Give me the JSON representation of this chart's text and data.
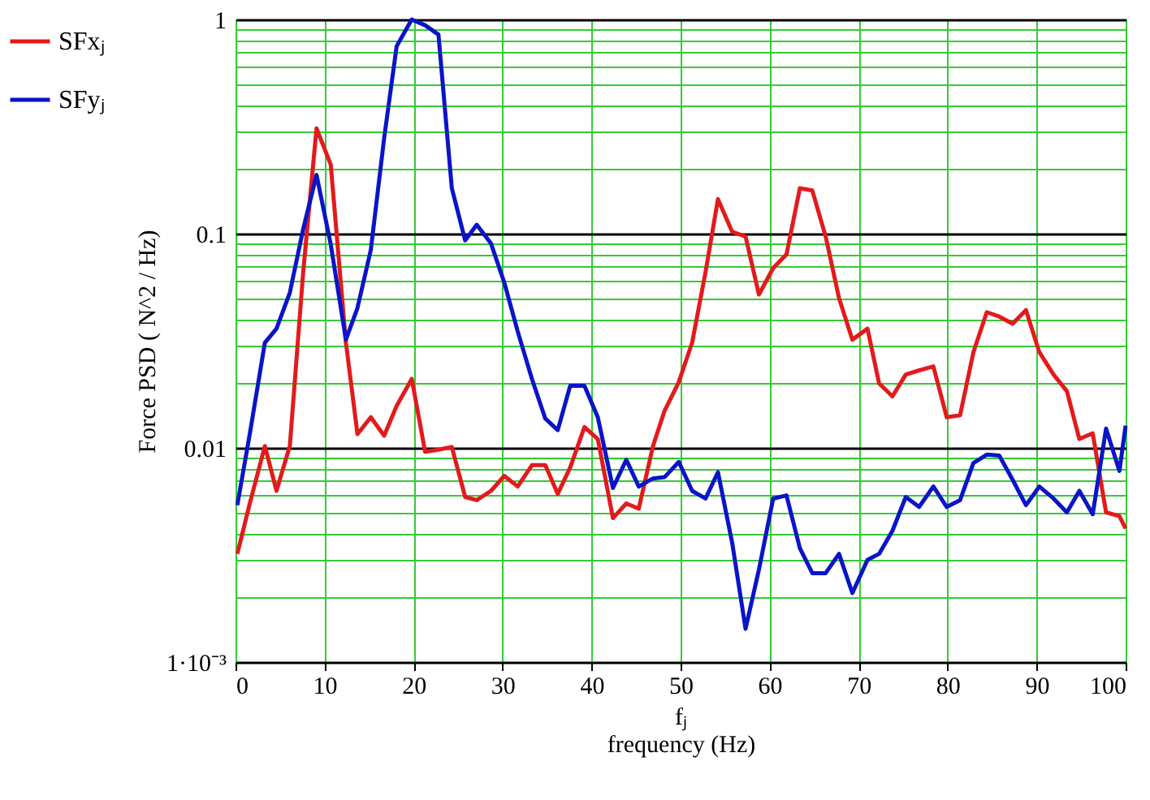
{
  "chart_data": {
    "type": "line",
    "xlabel": "fⱼ\nfrequency (Hz)",
    "ylabel": "Force PSD ( N^2 / Hz)",
    "log": "y",
    "grid": true,
    "legend": "left",
    "line_style": "solid",
    "marker": "none",
    "xlim": [
      0,
      100
    ],
    "xticks": [
      0,
      10,
      20,
      30,
      40,
      50,
      60,
      70,
      80,
      90,
      100
    ],
    "ylim": [
      0.001,
      1
    ],
    "yticks": [
      {
        "value": 0.001,
        "label": "1·10⁻³"
      },
      {
        "value": 0.002,
        "label": null
      },
      {
        "value": 0.003,
        "label": null
      },
      {
        "value": 0.004,
        "label": null
      },
      {
        "value": 0.005,
        "label": null
      },
      {
        "value": 0.006,
        "label": null
      },
      {
        "value": 0.007,
        "label": null
      },
      {
        "value": 0.008,
        "label": null
      },
      {
        "value": 0.009,
        "label": null
      },
      0.01,
      {
        "value": 0.02,
        "label": null
      },
      {
        "value": 0.03,
        "label": null
      },
      {
        "value": 0.04,
        "label": null
      },
      {
        "value": 0.05,
        "label": null
      },
      {
        "value": 0.06,
        "label": null
      },
      {
        "value": 0.07,
        "label": null
      },
      {
        "value": 0.08,
        "label": null
      },
      {
        "value": 0.09,
        "label": null
      },
      0.1,
      {
        "value": 0.2,
        "label": null
      },
      {
        "value": 0.3,
        "label": null
      },
      {
        "value": 0.4,
        "label": null
      },
      {
        "value": 0.5,
        "label": null
      },
      {
        "value": 0.6,
        "label": null
      },
      {
        "value": 0.7,
        "label": null
      },
      {
        "value": 0.8,
        "label": null
      },
      {
        "value": 0.9,
        "label": null
      },
      1
    ],
    "x": [
      0.2,
      1.6,
      3.3,
      4.6,
      6.1,
      7.6,
      9.1,
      10.7,
      12.4,
      13.7,
      15.2,
      16.7,
      18.1,
      19.8,
      21.3,
      22.8,
      24.3,
      25.8,
      27.1,
      28.7,
      30.2,
      31.7,
      33.3,
      34.8,
      36.2,
      37.6,
      39.2,
      40.7,
      42.4,
      43.9,
      45.3,
      46.9,
      48.2,
      49.8,
      51.3,
      52.8,
      54.2,
      55.8,
      57.3,
      58.8,
      60.4,
      61.9,
      63.4,
      64.8,
      66.3,
      67.8,
      69.3,
      71.0,
      72.3,
      73.8,
      75.3,
      76.8,
      78.4,
      79.9,
      81.4,
      82.9,
      84.4,
      85.8,
      87.3,
      88.8,
      90.3,
      91.9,
      93.4,
      94.8,
      96.3,
      97.8,
      99.3,
      100
    ],
    "series": [
      {
        "name": "SFxⱼ",
        "color": "#e31a1c",
        "values": [
          0.0032,
          0.0055,
          0.0102,
          0.0063,
          0.0102,
          0.066,
          0.31,
          0.21,
          0.031,
          0.0116,
          0.0139,
          0.0114,
          0.0157,
          0.021,
          0.0096,
          0.0098,
          0.0101,
          0.0059,
          0.0057,
          0.0063,
          0.0074,
          0.0066,
          0.0083,
          0.0083,
          0.0061,
          0.0081,
          0.0125,
          0.011,
          0.0047,
          0.0055,
          0.0052,
          0.0102,
          0.0149,
          0.0203,
          0.031,
          0.066,
          0.145,
          0.102,
          0.097,
          0.052,
          0.069,
          0.08,
          0.163,
          0.159,
          0.097,
          0.05,
          0.032,
          0.036,
          0.02,
          0.0174,
          0.022,
          0.023,
          0.024,
          0.0139,
          0.0142,
          0.028,
          0.043,
          0.041,
          0.038,
          0.044,
          0.028,
          0.022,
          0.0184,
          0.011,
          0.0117,
          0.005,
          0.0048,
          0.0042
        ]
      },
      {
        "name": "SFyⱼ",
        "color": "#0a14c8",
        "values": [
          0.0054,
          0.0116,
          0.031,
          0.036,
          0.053,
          0.105,
          0.188,
          0.089,
          0.032,
          0.045,
          0.084,
          0.28,
          0.75,
          1.0,
          0.94,
          0.85,
          0.163,
          0.093,
          0.11,
          0.09,
          0.059,
          0.035,
          0.021,
          0.0137,
          0.0121,
          0.0195,
          0.0195,
          0.0139,
          0.0065,
          0.0088,
          0.0066,
          0.0072,
          0.0073,
          0.0086,
          0.0063,
          0.0058,
          0.0077,
          0.0036,
          0.00143,
          0.0027,
          0.0058,
          0.006,
          0.0034,
          0.0026,
          0.0026,
          0.0032,
          0.0021,
          0.003,
          0.0032,
          0.0041,
          0.0059,
          0.0053,
          0.0066,
          0.0053,
          0.0057,
          0.0085,
          0.0093,
          0.0092,
          0.0071,
          0.0054,
          0.0066,
          0.0058,
          0.005,
          0.0063,
          0.0049,
          0.0123,
          0.0078,
          0.0127
        ]
      }
    ]
  }
}
